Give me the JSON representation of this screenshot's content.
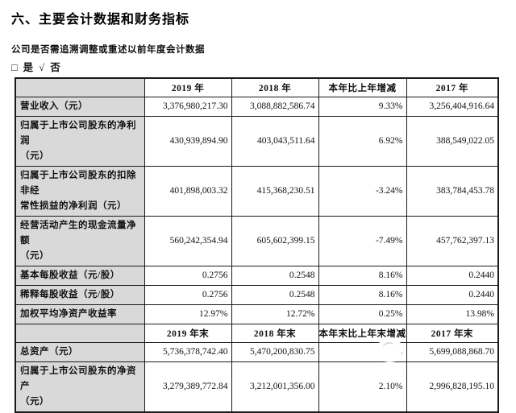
{
  "title": "六、主要会计数据和财务指标",
  "restate_question": "公司是否需追溯调整或重述以前年度会计数据",
  "restate_options": "□ 是 √ 否",
  "colors": {
    "label_cell_bg": "#d9d9d9",
    "border": "#1a1a1a",
    "text": "#111111",
    "page_bg": "#ffffff"
  },
  "watermark": {
    "shape": "white-circle"
  },
  "table": {
    "sections": [
      {
        "header": [
          "",
          "2019 年",
          "2018 年",
          "本年比上年增减",
          "2017 年"
        ],
        "rows": [
          {
            "label": "营业收入（元）",
            "values": [
              "3,376,980,217.30",
              "3,088,882,586.74",
              "9.33%",
              "3,256,404,916.64"
            ]
          },
          {
            "label": "归属于上市公司股东的净利润\n（元）",
            "values": [
              "430,939,894.90",
              "403,043,511.64",
              "6.92%",
              "388,549,022.05"
            ]
          },
          {
            "label": "归属于上市公司股东的扣除非经\n常性损益的净利润（元）",
            "values": [
              "401,898,003.32",
              "415,368,230.51",
              "-3.24%",
              "383,784,453.78"
            ]
          },
          {
            "label": "经营活动产生的现金流量净额\n（元）",
            "values": [
              "560,242,354.94",
              "605,602,399.15",
              "-7.49%",
              "457,762,397.13"
            ]
          },
          {
            "label": "基本每股收益（元/股）",
            "values": [
              "0.2756",
              "0.2548",
              "8.16%",
              "0.2440"
            ]
          },
          {
            "label": "稀释每股收益（元/股）",
            "values": [
              "0.2756",
              "0.2548",
              "8.16%",
              "0.2440"
            ]
          },
          {
            "label": "加权平均净资产收益率",
            "values": [
              "12.97%",
              "12.72%",
              "0.25%",
              "13.98%"
            ]
          }
        ]
      },
      {
        "header": [
          "",
          "2019 年末",
          "2018 年末",
          "本年末比上年末增减",
          "2017 年末"
        ],
        "rows": [
          {
            "label": "总资产（元）",
            "values": [
              "5,736,378,742.40",
              "5,470,200,830.75",
              "4.87%",
              "5,699,088,868.70"
            ]
          },
          {
            "label": "归属于上市公司股东的净资产\n（元）",
            "values": [
              "3,279,389,772.84",
              "3,212,001,356.00",
              "2.10%",
              "2,996,828,195.10"
            ]
          }
        ]
      }
    ]
  }
}
